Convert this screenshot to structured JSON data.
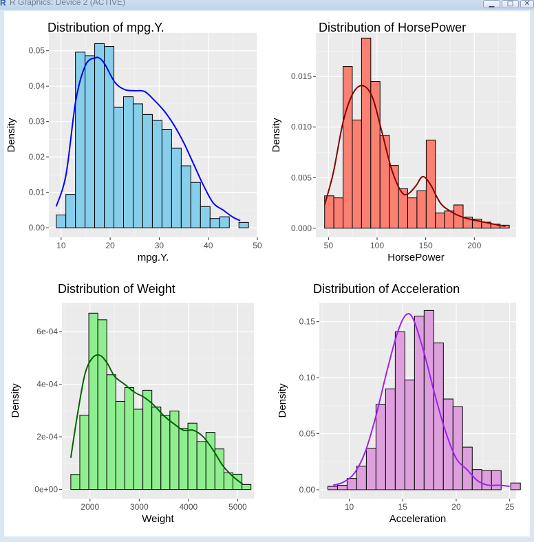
{
  "window": {
    "title": "R Graphics: Device 2 (ACTIVE)",
    "minimize_icon": "minimize-icon",
    "maximize_icon": "maximize-icon",
    "close_icon": "close-icon"
  },
  "chart_data": [
    {
      "type": "bar",
      "title": "Distribution of mpg.Y.",
      "xlabel": "mpg.Y.",
      "ylabel": "Density",
      "xlim": [
        7.5,
        50
      ],
      "ylim": [
        -0.0027,
        0.055
      ],
      "x_ticks": [
        10,
        20,
        30,
        40,
        50
      ],
      "y_ticks": [
        0.0,
        0.01,
        0.02,
        0.03,
        0.04,
        0.05
      ],
      "y_tick_labels": [
        "0.00",
        "0.01",
        "0.02",
        "0.03",
        "0.04",
        "0.05"
      ],
      "fill": "#87ceeb",
      "line_color": "#0000ff",
      "bin_start": 9.0,
      "bin_width": 1.96,
      "values": [
        0.0036,
        0.0094,
        0.0496,
        0.0486,
        0.052,
        0.0512,
        0.034,
        0.037,
        0.035,
        0.032,
        0.0303,
        0.0277,
        0.0225,
        0.0175,
        0.0128,
        0.006,
        0.0026,
        0.0031,
        0.0,
        0.0015
      ],
      "density_x": [
        9,
        11,
        13,
        15,
        17,
        18,
        19,
        21,
        23,
        25,
        27,
        29,
        31,
        33,
        35,
        37,
        39,
        41,
        43,
        45,
        46.5
      ],
      "density_y": [
        0.006,
        0.015,
        0.036,
        0.046,
        0.048,
        0.0477,
        0.046,
        0.041,
        0.039,
        0.0387,
        0.0385,
        0.036,
        0.033,
        0.029,
        0.024,
        0.018,
        0.012,
        0.007,
        0.005,
        0.003,
        0.002
      ]
    },
    {
      "type": "bar",
      "title": "Distribution of HorsePower",
      "xlabel": "HorsePower",
      "ylabel": "Density",
      "xlim": [
        37,
        243
      ],
      "ylim": [
        -0.0009,
        0.0193
      ],
      "x_ticks": [
        50,
        100,
        150,
        200
      ],
      "y_ticks": [
        0.0,
        0.005,
        0.01,
        0.015
      ],
      "y_tick_labels": [
        "0.000",
        "0.005",
        "0.010",
        "0.015"
      ],
      "fill": "#fa8072",
      "line_color": "#8b0000",
      "bin_start": 46.0,
      "bin_width": 9.5,
      "values": [
        0.0032,
        0.003,
        0.016,
        0.0107,
        0.0188,
        0.0145,
        0.0092,
        0.0062,
        0.0039,
        0.003,
        0.0037,
        0.0087,
        0.0015,
        0.0017,
        0.0023,
        0.0011,
        0.0009,
        0.0006,
        0.0004,
        0.0003
      ],
      "density_x": [
        46,
        55,
        65,
        75,
        85,
        95,
        105,
        115,
        125,
        132,
        140,
        147,
        155,
        165,
        175,
        185,
        195,
        205,
        215,
        225,
        232
      ],
      "density_y": [
        0.0023,
        0.0055,
        0.0105,
        0.0133,
        0.0141,
        0.013,
        0.0095,
        0.0058,
        0.0036,
        0.0034,
        0.0042,
        0.0051,
        0.0043,
        0.0025,
        0.0017,
        0.0012,
        0.0009,
        0.0007,
        0.0005,
        0.0003,
        0.0002
      ]
    },
    {
      "type": "bar",
      "title": "Distribution of Weight",
      "xlabel": "Weight",
      "ylabel": "Density",
      "xlim": [
        1430,
        5330
      ],
      "ylim": [
        -3.5e-05,
        0.00071
      ],
      "x_ticks": [
        2000,
        3000,
        4000,
        5000
      ],
      "y_ticks": [
        0.0,
        0.0002,
        0.0004,
        0.0006
      ],
      "y_tick_labels": [
        "0e+00",
        "2e-04",
        "4e-04",
        "6e-04"
      ],
      "fill": "#90ee90",
      "line_color": "#006400",
      "bin_start": 1610,
      "bin_width": 183,
      "values": [
        5.7e-05,
        0.000282,
        0.00067,
        0.000645,
        0.000436,
        0.000335,
        0.000387,
        0.000305,
        0.000377,
        0.000313,
        0.000281,
        0.000298,
        0.000232,
        0.000252,
        0.000182,
        0.000217,
        0.000154,
        6.3e-05,
        5.8e-05,
        1.9e-05
      ],
      "density_x": [
        1610,
        1750,
        1900,
        2050,
        2200,
        2350,
        2500,
        2700,
        2900,
        3100,
        3300,
        3500,
        3700,
        3900,
        4100,
        4300,
        4500,
        4700,
        4900,
        5100
      ],
      "density_y": [
        0.00012,
        0.00029,
        0.00044,
        0.0005,
        0.00051,
        0.00048,
        0.00043,
        0.0004,
        0.00037,
        0.00035,
        0.00032,
        0.00028,
        0.00025,
        0.000225,
        0.000225,
        0.0002,
        0.00015,
        9e-05,
        5e-05,
        2e-05
      ]
    },
    {
      "type": "bar",
      "title": "Distribution of Acceleration",
      "xlabel": "Acceleration",
      "ylabel": "Density",
      "xlim": [
        7.2,
        25.6
      ],
      "ylim": [
        -0.008,
        0.167
      ],
      "x_ticks": [
        10,
        15,
        20,
        25
      ],
      "y_ticks": [
        0.0,
        0.05,
        0.1,
        0.15
      ],
      "y_tick_labels": [
        "0.00",
        "0.05",
        "0.10",
        "0.15"
      ],
      "fill": "#dda0dd",
      "line_color": "#a020f0",
      "bin_start": 8.0,
      "bin_width": 0.9,
      "values": [
        0.003,
        0.004,
        0.01,
        0.021,
        0.037,
        0.076,
        0.09,
        0.141,
        0.098,
        0.155,
        0.16,
        0.131,
        0.081,
        0.074,
        0.038,
        0.018,
        0.017,
        0.017,
        0.0,
        0.006
      ],
      "density_x": [
        8.5,
        9.5,
        10.5,
        11.5,
        12.5,
        13.5,
        14.5,
        15.3,
        16,
        17,
        18,
        19,
        20,
        21,
        22,
        23,
        24,
        25
      ],
      "density_y": [
        0.004,
        0.007,
        0.015,
        0.034,
        0.066,
        0.105,
        0.14,
        0.156,
        0.152,
        0.122,
        0.085,
        0.052,
        0.028,
        0.018,
        0.008,
        0.004,
        0.004,
        0.003
      ]
    }
  ]
}
